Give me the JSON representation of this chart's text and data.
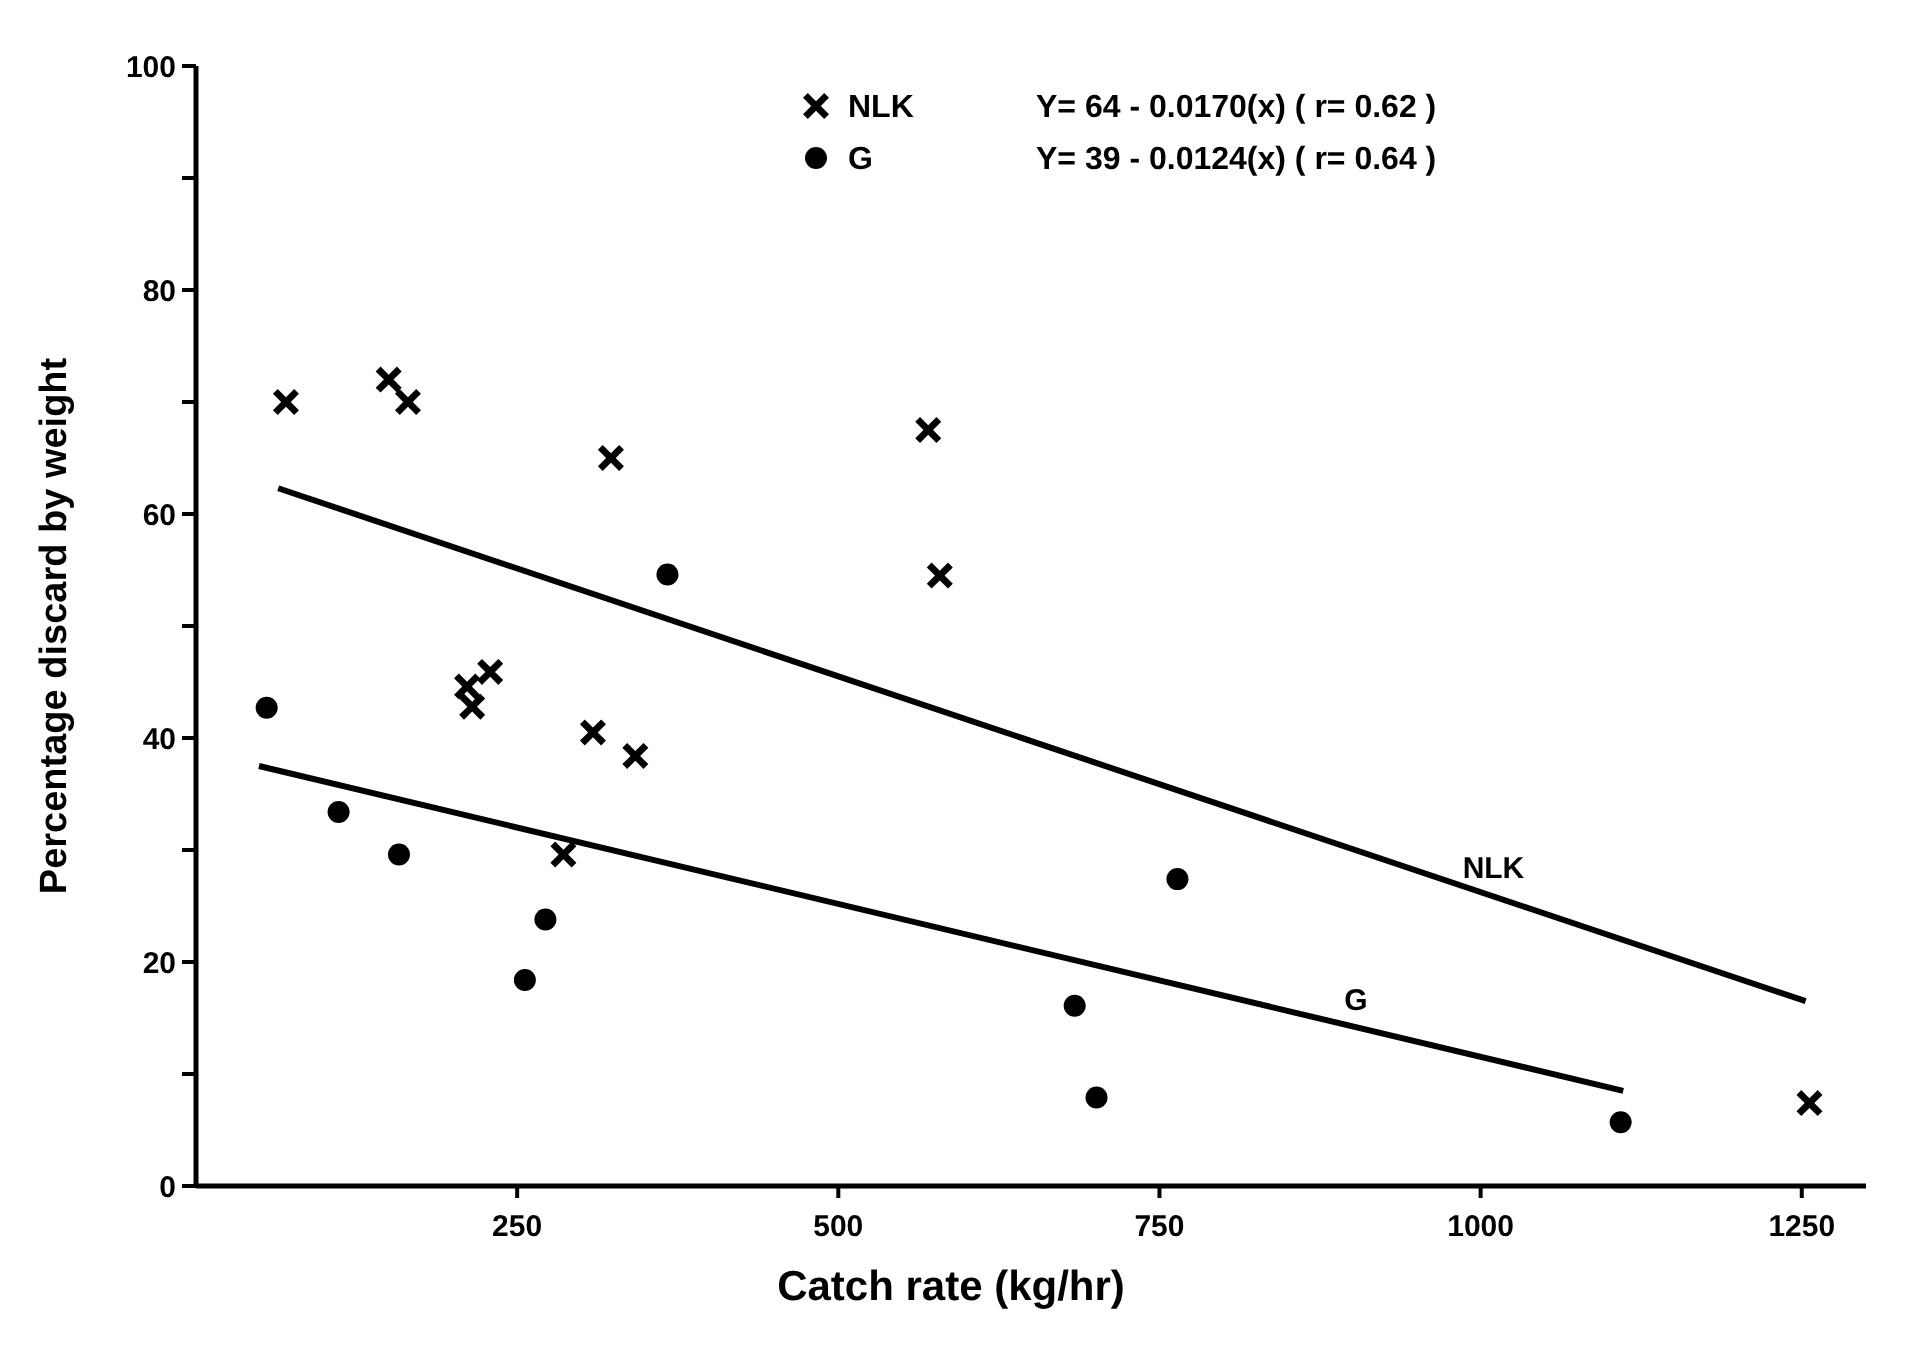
{
  "chart_data": {
    "type": "scatter",
    "xlabel": "Catch rate  (kg/hr)",
    "ylabel": "Percentage discard by weight",
    "xlim": [
      0,
      1300
    ],
    "ylim": [
      0,
      100
    ],
    "xticks": [
      250,
      500,
      750,
      1000,
      1250
    ],
    "yticks": [
      0,
      {
        "value": 10,
        "label": null
      },
      20,
      {
        "value": 30,
        "label": null
      },
      40,
      {
        "value": 50,
        "label": null
      },
      60,
      {
        "value": 70,
        "label": null
      },
      80,
      {
        "value": 90,
        "label": null
      },
      100
    ],
    "grid": false,
    "legend": "top",
    "annotations": [
      "Y= 64 - 0.0170(x) ( r= 0.62 )",
      "Y= 39 - 0.0124(x) ( r= 0.64 )",
      {
        "text": "NLK",
        "x": 1010,
        "y": 25.9
      },
      {
        "text": "G",
        "x": 903,
        "y": 14.1
      }
    ],
    "series": [
      {
        "name": "NLK",
        "color": "#000000",
        "marker": "cross",
        "x": [
          70,
          150,
          165,
          323,
          570,
          579,
          211,
          229,
          215,
          309,
          342,
          286,
          1256
        ],
        "values": [
          70,
          72,
          70,
          65,
          67.5,
          54.5,
          44.6,
          45.9,
          42.8,
          40.5,
          38.4,
          29.6,
          7.4
        ]
      },
      {
        "name": "G",
        "color": "#000000",
        "marker": "circle",
        "x": [
          55,
          111,
          158,
          367,
          272,
          256,
          764,
          684,
          701,
          1109
        ],
        "values": [
          42.7,
          33.4,
          29.6,
          54.6,
          23.8,
          18.4,
          27.4,
          16.1,
          7.9,
          5.7
        ]
      },
      {
        "type": "line",
        "color": "#000000",
        "x": [
          64,
          1253
        ],
        "values": [
          62.3,
          16.5
        ]
      },
      {
        "type": "line",
        "color": "#000000",
        "x": [
          49,
          1111
        ],
        "values": [
          37.5,
          8.5
        ]
      }
    ]
  }
}
